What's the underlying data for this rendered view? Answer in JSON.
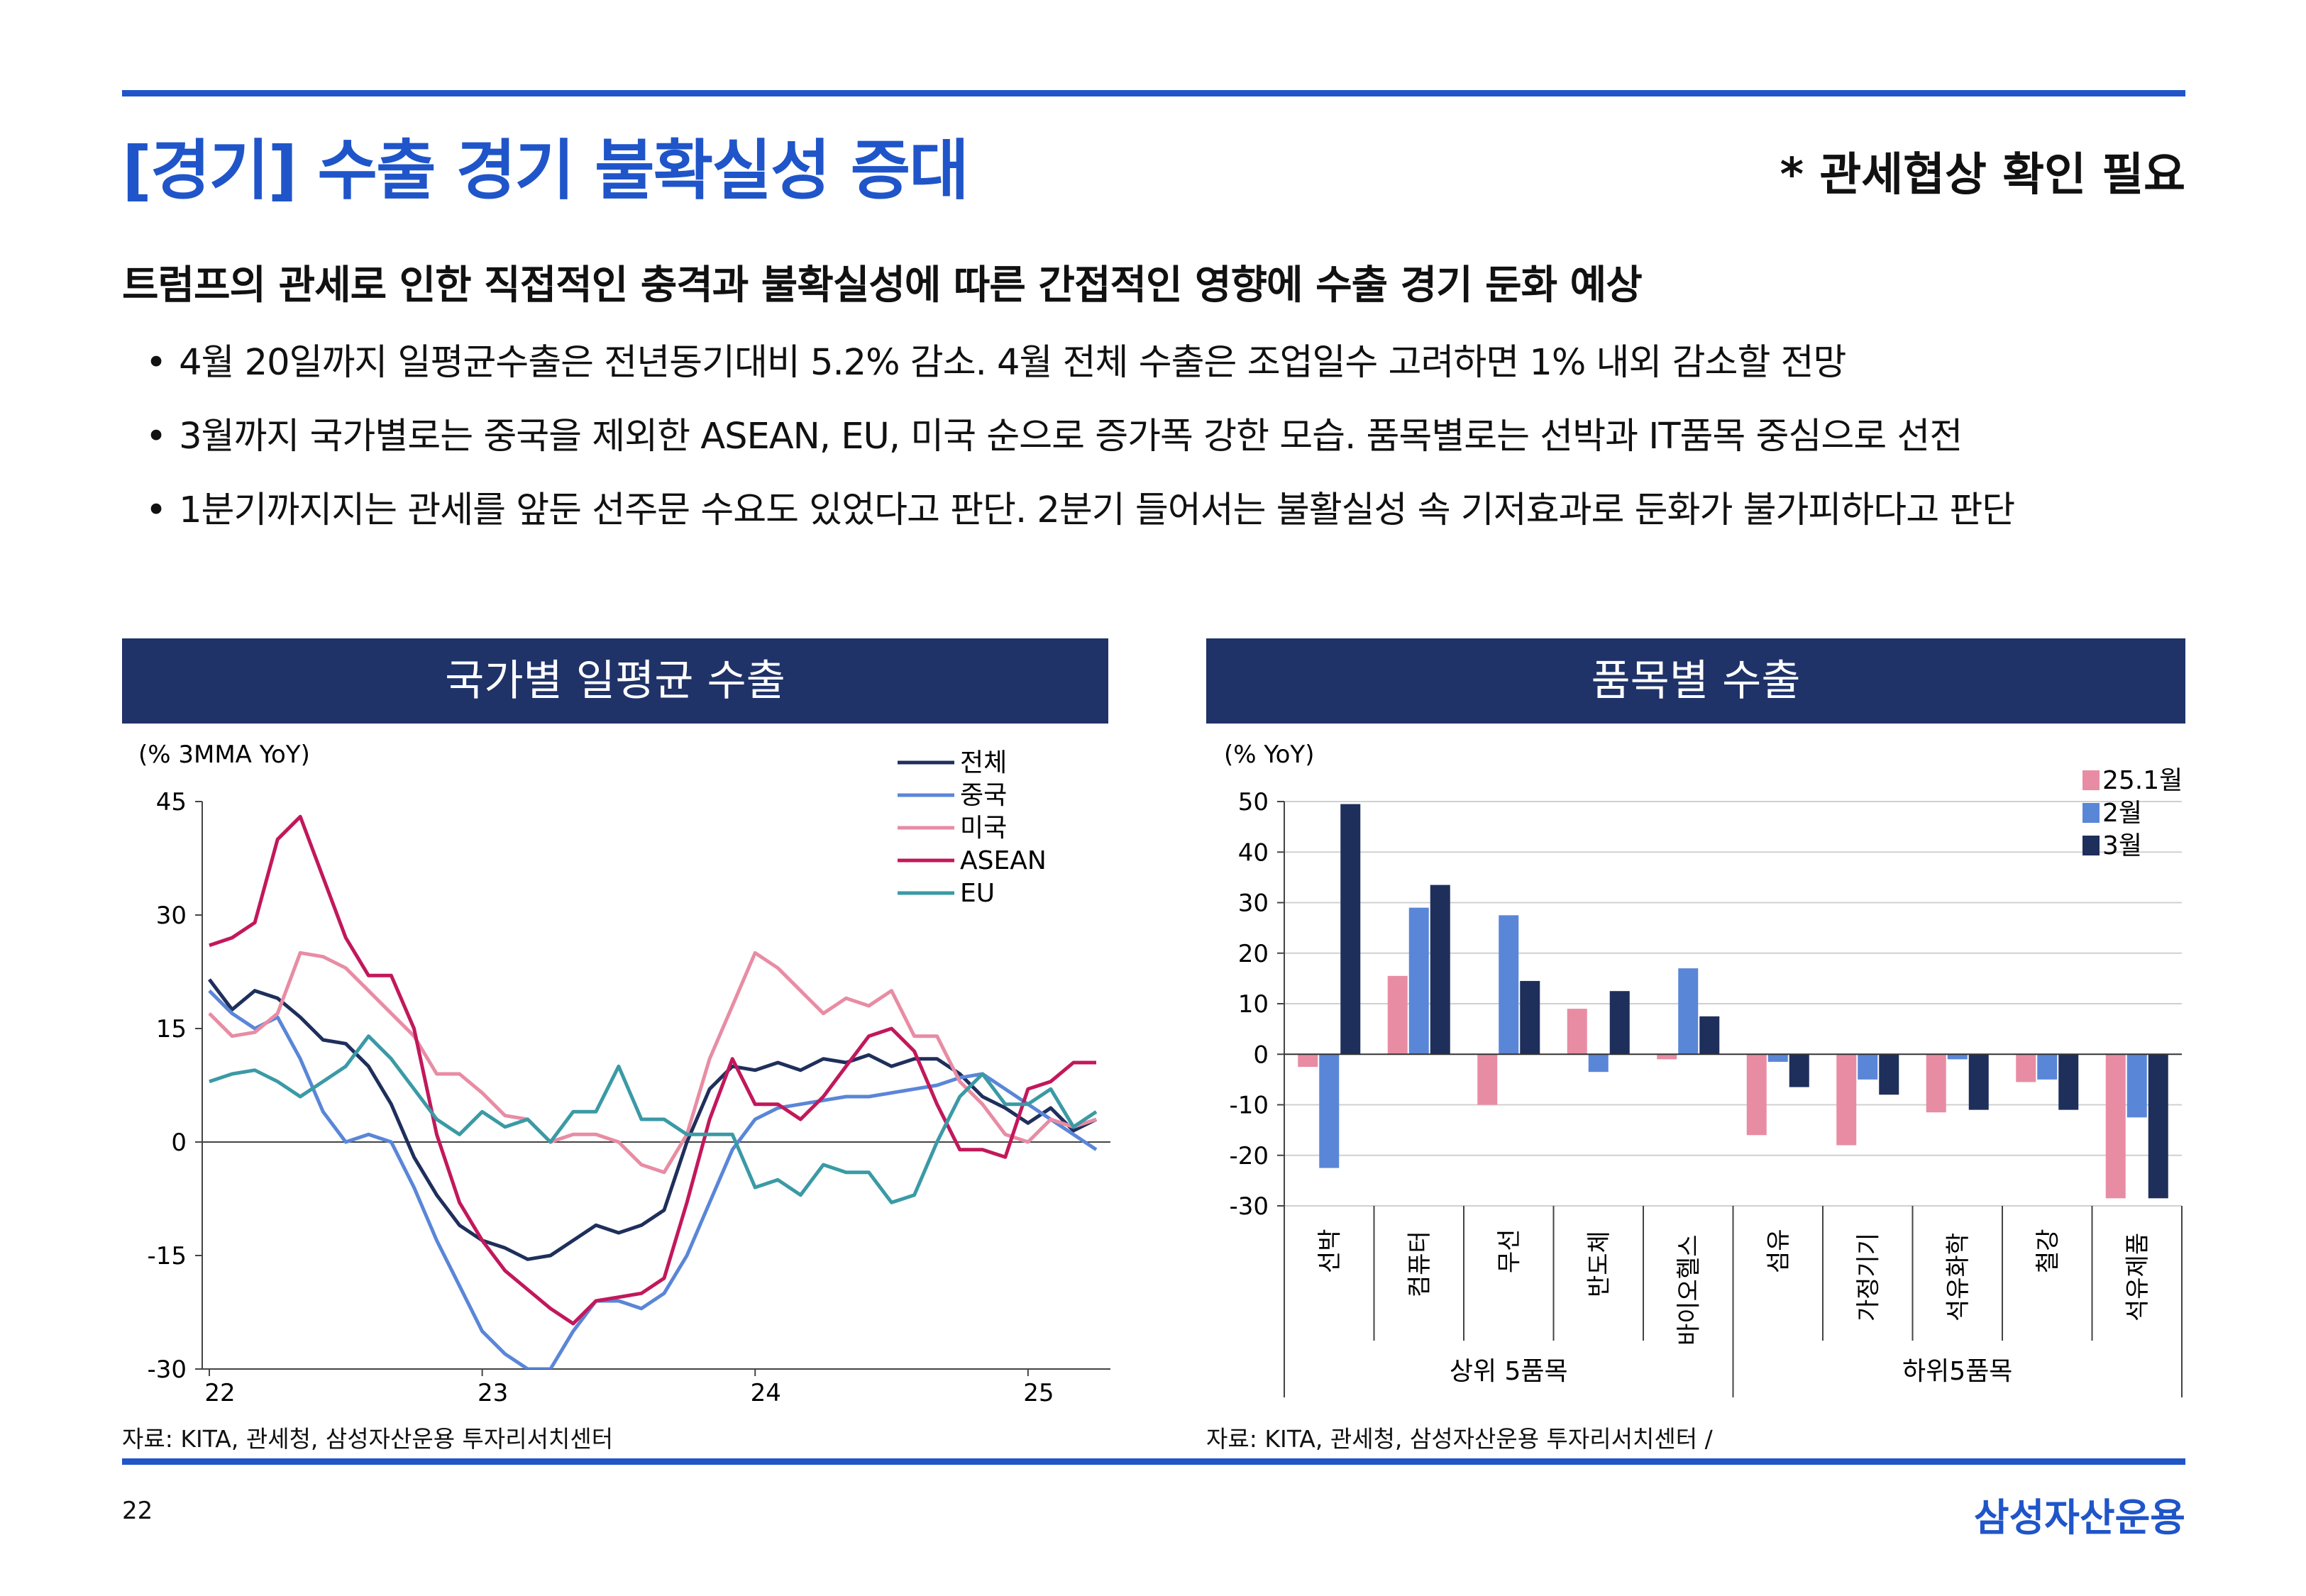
{
  "header": {
    "title": "[경기] 수출 경기 불확실성 증대",
    "note": "* 관세협상 확인 필요"
  },
  "summary": {
    "lead": "트럼프의 관세로 인한 직접적인 충격과 불확실성에 따른 간접적인 영향에 수출 경기 둔화 예상",
    "bullets": [
      "4월 20일까지 일평균수출은 전년동기대비 5.2% 감소. 4월 전체 수출은 조업일수 고려하면 1% 내외 감소할 전망",
      "3월까지 국가별로는 중국을 제외한 ASEAN, EU, 미국 순으로 증가폭 강한 모습. 품목별로는 선박과 IT품목 중심으로 선전",
      "1분기까지지는 관세를 앞둔 선주문 수요도 있었다고 판단. 2분기 들어서는 불활실성 속 기저효과로 둔화가 불가피하다고 판단"
    ]
  },
  "chart_data": [
    {
      "type": "line",
      "panel_title": "국가별 일평균 수출",
      "unit_label": "(% 3MMA YoY)",
      "ylim": [
        -30,
        45
      ],
      "yticks": [
        45,
        30,
        15,
        0,
        -15,
        -30
      ],
      "x_tick_labels": [
        "22",
        "23",
        "24",
        "25"
      ],
      "x_tick_index": [
        0,
        12,
        24,
        36
      ],
      "legend_position": "top-right",
      "series": [
        {
          "name": "전체",
          "color": "#1f2f5c",
          "values": [
            21.5,
            17.5,
            20,
            19,
            16.5,
            13.5,
            13,
            10,
            5,
            -2,
            -7,
            -11,
            -13,
            -14,
            -15.5,
            -15,
            -13,
            -11,
            -12,
            -11,
            -9,
            0,
            7,
            10,
            9.5,
            10.5,
            9.5,
            11,
            10.5,
            11.5,
            10,
            11,
            11,
            9,
            6,
            4.5,
            2.5,
            4.5,
            1.5,
            3
          ]
        },
        {
          "name": "중국",
          "color": "#5a86d8",
          "values": [
            20,
            17,
            15,
            16.5,
            11,
            4,
            0,
            1,
            0,
            -6,
            -13,
            -19,
            -25,
            -28,
            -30,
            -30,
            -25,
            -21,
            -21,
            -22,
            -20,
            -15,
            -8,
            -1,
            3,
            4.5,
            5,
            5.5,
            6,
            6,
            6.5,
            7,
            7.5,
            8.5,
            9,
            7,
            5,
            3,
            1,
            -1
          ]
        },
        {
          "name": "미국",
          "color": "#e88ca4",
          "values": [
            17,
            14,
            14.5,
            17,
            25,
            24.5,
            23,
            20,
            17,
            14,
            9,
            9,
            6.5,
            3.5,
            3,
            0,
            1,
            1,
            0,
            -3,
            -4,
            1,
            11,
            18,
            25,
            23,
            20,
            17,
            19,
            18,
            20,
            14,
            14,
            8,
            5,
            1,
            0,
            3,
            2,
            3
          ]
        },
        {
          "name": "ASEAN",
          "color": "#c2185b",
          "values": [
            26,
            27,
            29,
            40,
            43,
            35,
            27,
            22,
            22,
            15,
            1,
            -8,
            -13,
            -17,
            -19.5,
            -22,
            -24,
            -21,
            -20.5,
            -20,
            -18,
            -8,
            3,
            11,
            5,
            5,
            3,
            6,
            10,
            14,
            15,
            12,
            5,
            -1,
            -1,
            -2,
            7,
            8,
            10.5,
            10.5
          ]
        },
        {
          "name": "EU",
          "color": "#3a9aa5",
          "values": [
            8,
            9,
            9.5,
            8,
            6,
            8,
            10,
            14,
            11,
            7,
            3,
            1,
            4,
            2,
            3,
            0,
            4,
            4,
            10,
            3,
            3,
            1,
            1,
            1,
            -6,
            -5,
            -7,
            -3,
            -4,
            -4,
            -8,
            -7,
            0,
            6,
            9,
            5,
            5,
            7,
            2,
            4
          ]
        }
      ]
    },
    {
      "type": "bar",
      "panel_title": "품목별 수출",
      "unit_label": "(% YoY)",
      "ylim": [
        -30,
        50
      ],
      "yticks": [
        50,
        40,
        30,
        20,
        10,
        0,
        -10,
        -20,
        -30
      ],
      "categories": [
        "선박",
        "컴퓨터",
        "무선",
        "반도체",
        "바이오헬스",
        "섬유",
        "가정기기",
        "석유화학",
        "철강",
        "석유제품"
      ],
      "groups": [
        {
          "label": "상위 5품목",
          "count": 5
        },
        {
          "label": "하위5품목",
          "count": 5
        }
      ],
      "legend_position": "top-right",
      "series": [
        {
          "name": "25.1월",
          "color": "#e88ca4",
          "values": [
            -2.5,
            15.5,
            -10,
            9,
            -1,
            -16,
            -18,
            -11.5,
            -5.5,
            -28.5
          ]
        },
        {
          "name": "2월",
          "color": "#5a86d8",
          "values": [
            -22.5,
            29,
            27.5,
            -3.5,
            17,
            -1.5,
            -5,
            -1,
            -5,
            -12.5
          ]
        },
        {
          "name": "3월",
          "color": "#1f2f5c",
          "values": [
            49.5,
            33.5,
            14.5,
            12.5,
            7.5,
            -6.5,
            -8,
            -11,
            -11,
            -28.5
          ]
        }
      ]
    }
  ],
  "footer": {
    "source_left": "자료: KITA, 관세청, 삼성자산운용 투자리서치센터",
    "source_right": "자료: KITA, 관세청, 삼성자산운용 투자리서치센터 /",
    "page_number": "22",
    "brand": "삼성자산운용"
  },
  "colors": {
    "accent": "#1f55c9",
    "panel_header": "#1f3368"
  }
}
